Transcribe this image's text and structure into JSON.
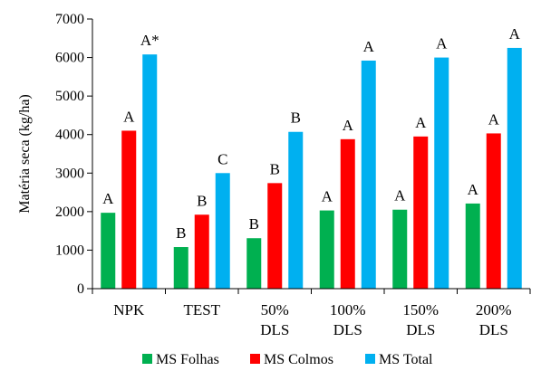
{
  "chart_data": {
    "type": "bar",
    "categories": [
      [
        "NPK"
      ],
      [
        "TEST"
      ],
      [
        "50%",
        "DLS"
      ],
      [
        "100%",
        "DLS"
      ],
      [
        "150%",
        "DLS"
      ],
      [
        "200%",
        "DLS"
      ]
    ],
    "series": [
      {
        "name": "MS Folhas",
        "color": "#00b050",
        "values": [
          1970,
          1080,
          1310,
          2030,
          2050,
          2210
        ],
        "labels": [
          "A",
          "B",
          "B",
          "A",
          "A",
          "A"
        ]
      },
      {
        "name": "MS Colmos",
        "color": "#ff0000",
        "values": [
          4100,
          1920,
          2740,
          3880,
          3950,
          4030
        ],
        "labels": [
          "A",
          "B",
          "B",
          "A",
          "A",
          "A"
        ]
      },
      {
        "name": "MS Total",
        "color": "#00b0f0",
        "values": [
          6080,
          3000,
          4070,
          5920,
          6000,
          6250
        ],
        "labels": [
          "A*",
          "C",
          "B",
          "A",
          "A",
          "A"
        ]
      }
    ],
    "ylabel": "Matéria seca (kg/ha)",
    "ylim": [
      0,
      7000
    ],
    "yticks": [
      0,
      1000,
      2000,
      3000,
      4000,
      5000,
      6000,
      7000
    ],
    "legend_position": "bottom",
    "grid": false
  }
}
